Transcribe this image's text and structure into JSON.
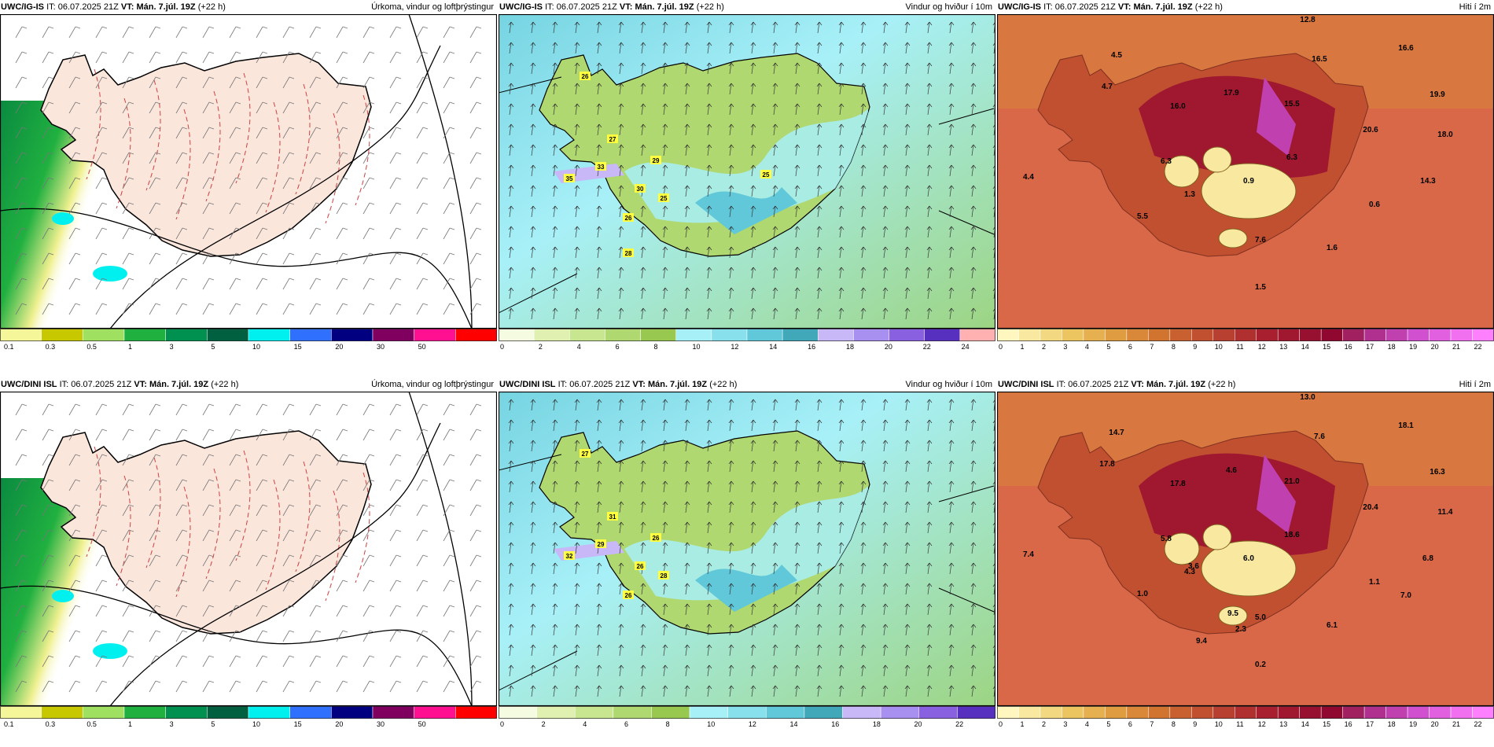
{
  "panels": [
    {
      "row": 0,
      "col": 0,
      "model": "UWC/IG-IS",
      "it_label": "IT:",
      "it": "06.07.2025 21Z",
      "vt_label": "VT: Mán. 7.júl. 19Z",
      "lead": "(+22 h)",
      "title": "Úrkoma, vindur og loftþrýstingur",
      "cbar": {
        "colors": [
          "#f5f59a",
          "#c8c800",
          "#a0e060",
          "#20b040",
          "#009050",
          "#006040",
          "#00f0f0",
          "#3070ff",
          "#000080",
          "#800060",
          "#ff1090",
          "#ff0000"
        ],
        "ticks": [
          "0.1",
          "0.3",
          "0.5",
          "1",
          "3",
          "5",
          "10",
          "15",
          "20",
          "30",
          "50"
        ]
      }
    },
    {
      "row": 0,
      "col": 1,
      "model": "UWC/IG-IS",
      "it_label": "IT:",
      "it": "06.07.2025 21Z",
      "vt_label": "VT: Mán. 7.júl. 19Z",
      "lead": "(+22 h)",
      "title": "Vindur og hviður í 10m",
      "cbar": {
        "colors": [
          "#f5fbe0",
          "#e0f0b0",
          "#c8e690",
          "#b0d870",
          "#98c850",
          "#a8f0f8",
          "#88e0ec",
          "#60c8d8",
          "#40a8b8",
          "#c8b8f8",
          "#a890f0",
          "#8860e0",
          "#5830c0",
          "#ffb0b0"
        ],
        "ticks": [
          "0",
          "2",
          "4",
          "6",
          "8",
          "10",
          "12",
          "14",
          "16",
          "18",
          "20",
          "22",
          "24"
        ]
      },
      "labels": [
        "26",
        "27",
        "35",
        "33",
        "29",
        "25",
        "30",
        "26",
        "28",
        "25"
      ]
    },
    {
      "row": 0,
      "col": 2,
      "model": "UWC/IG-IS",
      "it_label": "IT:",
      "it": "06.07.2025 21Z",
      "vt_label": "VT: Mán. 7.júl. 19Z",
      "lead": "(+22 h)",
      "title": "Hiti í 2m",
      "cbar": {
        "colors": [
          "#fff6c0",
          "#f8e8a0",
          "#f2d880",
          "#ecc460",
          "#e6b050",
          "#e09c40",
          "#d88838",
          "#d07430",
          "#c86030",
          "#c05030",
          "#b84030",
          "#b03030",
          "#a82030",
          "#a01830",
          "#981030",
          "#900830",
          "#a02060",
          "#b03090",
          "#c040b0",
          "#d050d0",
          "#e060e0",
          "#f070f0",
          "#ff80ff"
        ],
        "ticks": [
          "0",
          "1",
          "2",
          "3",
          "4",
          "5",
          "6",
          "7",
          "8",
          "9",
          "10",
          "11",
          "12",
          "13",
          "14",
          "15",
          "16",
          "17",
          "18",
          "19",
          "20",
          "21",
          "22"
        ]
      },
      "labels": [
        "12.8",
        "4.5",
        "16.5",
        "16.6",
        "4.7",
        "17.9",
        "16.0",
        "15.5",
        "20.6",
        "19.9",
        "18.0",
        "6.3",
        "6.3",
        "4.4",
        "1.3",
        "0.9",
        "14.3",
        "0.6",
        "5.5",
        "7.6",
        "1.6",
        "1.5"
      ]
    },
    {
      "row": 1,
      "col": 0,
      "model": "UWC/DINI ISL",
      "it_label": "IT:",
      "it": "06.07.2025 21Z",
      "vt_label": "VT: Mán. 7.júl. 19Z",
      "lead": "(+22 h)",
      "title": "Úrkoma, vindur og loftþrýstingur",
      "cbar": {
        "colors": [
          "#f5f59a",
          "#c8c800",
          "#a0e060",
          "#20b040",
          "#009050",
          "#006040",
          "#00f0f0",
          "#3070ff",
          "#000080",
          "#800060",
          "#ff1090",
          "#ff0000"
        ],
        "ticks": [
          "0.1",
          "0.3",
          "0.5",
          "1",
          "3",
          "5",
          "10",
          "15",
          "20",
          "30",
          "50"
        ]
      }
    },
    {
      "row": 1,
      "col": 1,
      "model": "UWC/DINI ISL",
      "it_label": "IT:",
      "it": "06.07.2025 21Z",
      "vt_label": "VT: Mán. 7.júl. 19Z",
      "lead": "(+22 h)",
      "title": "Vindur og hviður í 10m",
      "cbar": {
        "colors": [
          "#f5fbe0",
          "#e0f0b0",
          "#c8e690",
          "#b0d870",
          "#98c850",
          "#a8f0f8",
          "#88e0ec",
          "#60c8d8",
          "#40a8b8",
          "#c8b8f8",
          "#a890f0",
          "#8860e0",
          "#5830c0"
        ],
        "ticks": [
          "0",
          "2",
          "4",
          "6",
          "8",
          "10",
          "12",
          "14",
          "16",
          "18",
          "20",
          "22"
        ]
      },
      "labels": [
        "27",
        "31",
        "32",
        "29",
        "26",
        "28",
        "26",
        "26"
      ]
    },
    {
      "row": 1,
      "col": 2,
      "model": "UWC/DINI ISL",
      "it_label": "IT:",
      "it": "06.07.2025 21Z",
      "vt_label": "VT: Mán. 7.júl. 19Z",
      "lead": "(+22 h)",
      "title": "Hiti í 2m",
      "cbar": {
        "colors": [
          "#fff6c0",
          "#f8e8a0",
          "#f2d880",
          "#ecc460",
          "#e6b050",
          "#e09c40",
          "#d88838",
          "#d07430",
          "#c86030",
          "#c05030",
          "#b84030",
          "#b03030",
          "#a82030",
          "#a01830",
          "#981030",
          "#900830",
          "#a02060",
          "#b03090",
          "#c040b0",
          "#d050d0",
          "#e060e0",
          "#f070f0",
          "#ff80ff"
        ],
        "ticks": [
          "0",
          "1",
          "2",
          "3",
          "4",
          "5",
          "6",
          "7",
          "8",
          "9",
          "10",
          "11",
          "12",
          "13",
          "14",
          "15",
          "16",
          "17",
          "18",
          "19",
          "20",
          "21",
          "22"
        ]
      },
      "labels": [
        "13.0",
        "14.7",
        "7.6",
        "18.1",
        "17.8",
        "4.6",
        "17.8",
        "21.0",
        "20.4",
        "16.3",
        "11.4",
        "5.8",
        "18.6",
        "7.4",
        "4.3",
        "6.0",
        "6.8",
        "1.1",
        "1.0",
        "5.0",
        "6.1",
        "0.2",
        "3.6",
        "7.0",
        "9.5",
        "9.4",
        "2.3"
      ]
    }
  ]
}
